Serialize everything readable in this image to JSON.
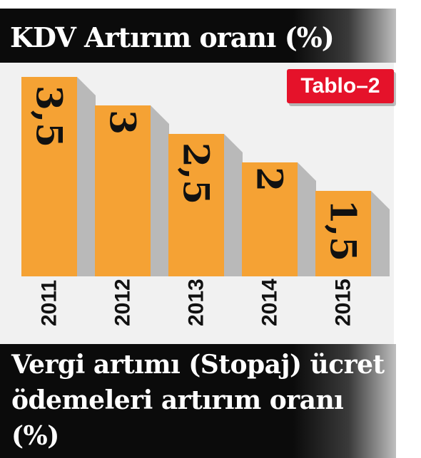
{
  "header": {
    "title": "KDV  Artırım oranı (%)"
  },
  "badge": {
    "label": "Tablo–2"
  },
  "chart_data": {
    "type": "bar",
    "title": "KDV  Artırım oranı (%)",
    "categories": [
      "2011",
      "2012",
      "2013",
      "2014",
      "2015"
    ],
    "values": [
      3.5,
      3,
      2.5,
      2,
      1.5
    ],
    "value_labels": [
      "3,5",
      "3",
      "2,5",
      "2",
      "1,5"
    ],
    "ylim": [
      0,
      3.5
    ],
    "grid": false,
    "legend": "none",
    "colors": {
      "bar": "#f5a234",
      "shadow": "#8a8a8a",
      "label": "#111111",
      "background": "#f1f1f1"
    }
  },
  "footer": {
    "text": "Vergi artımı (Stopaj) ücret ödemeleri artırım oranı (%)"
  }
}
